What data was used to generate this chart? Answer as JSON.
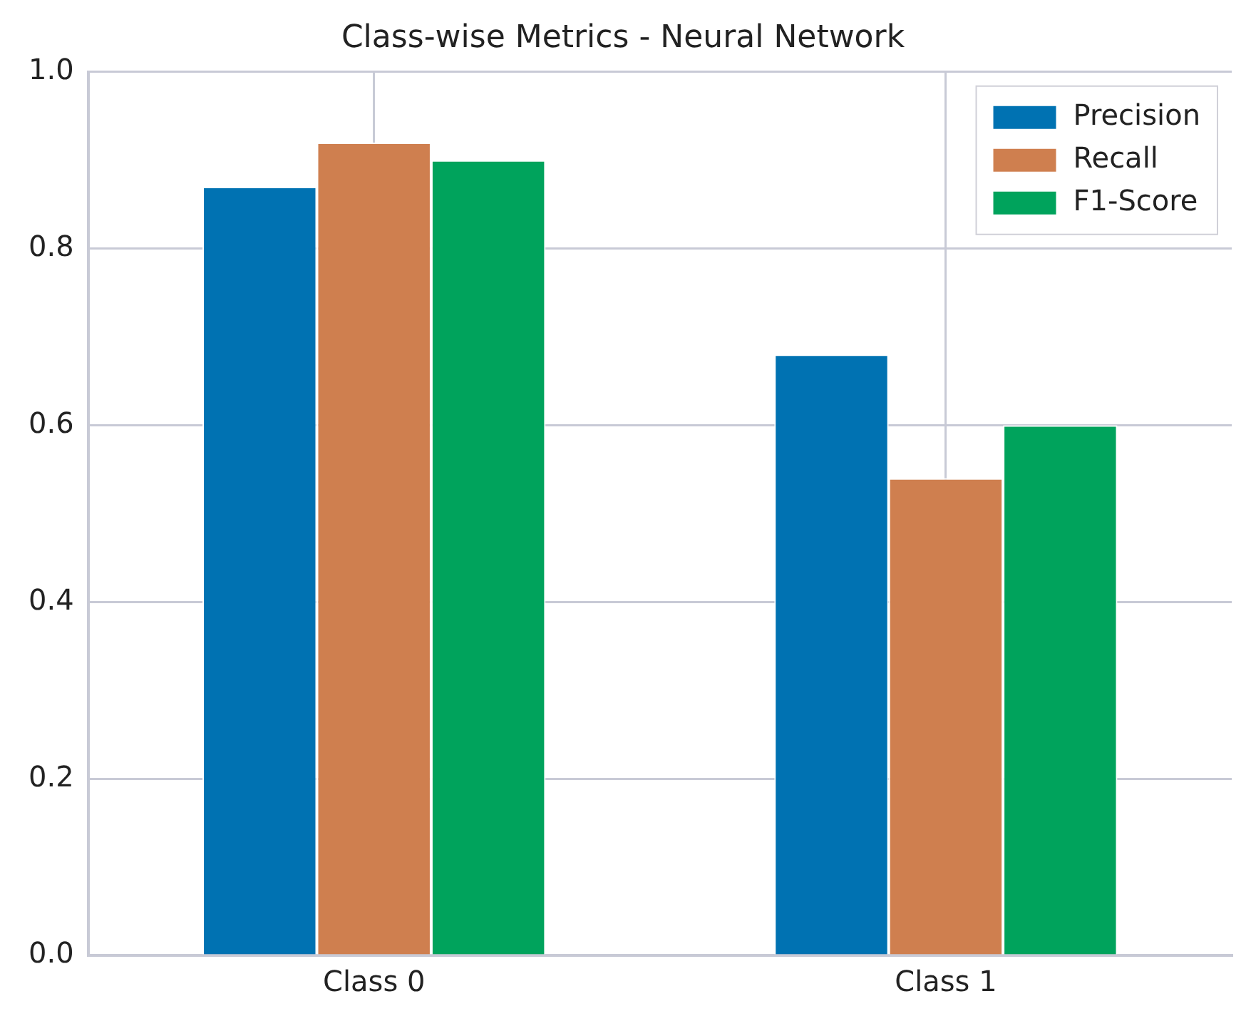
{
  "chart_data": {
    "type": "bar",
    "title": "Class-wise Metrics - Neural Network",
    "categories": [
      "Class 0",
      "Class 1"
    ],
    "series": [
      {
        "name": "Precision",
        "color": "#0072b2",
        "values": [
          0.87,
          0.68
        ]
      },
      {
        "name": "Recall",
        "color": "#cf7f4f",
        "values": [
          0.92,
          0.54
        ]
      },
      {
        "name": "F1-Score",
        "color": "#00a35c",
        "values": [
          0.9,
          0.6
        ]
      }
    ],
    "ylim": [
      0,
      1
    ],
    "yticks": [
      {
        "value": 0,
        "label": "0.0"
      },
      {
        "value": 0.2,
        "label": "0.2"
      },
      {
        "value": 0.4,
        "label": "0.4"
      },
      {
        "value": 0.6,
        "label": "0.6"
      },
      {
        "value": 0.8,
        "label": "0.8"
      },
      {
        "value": 1,
        "label": "1.0"
      }
    ],
    "grid": true,
    "legend": "top right"
  }
}
